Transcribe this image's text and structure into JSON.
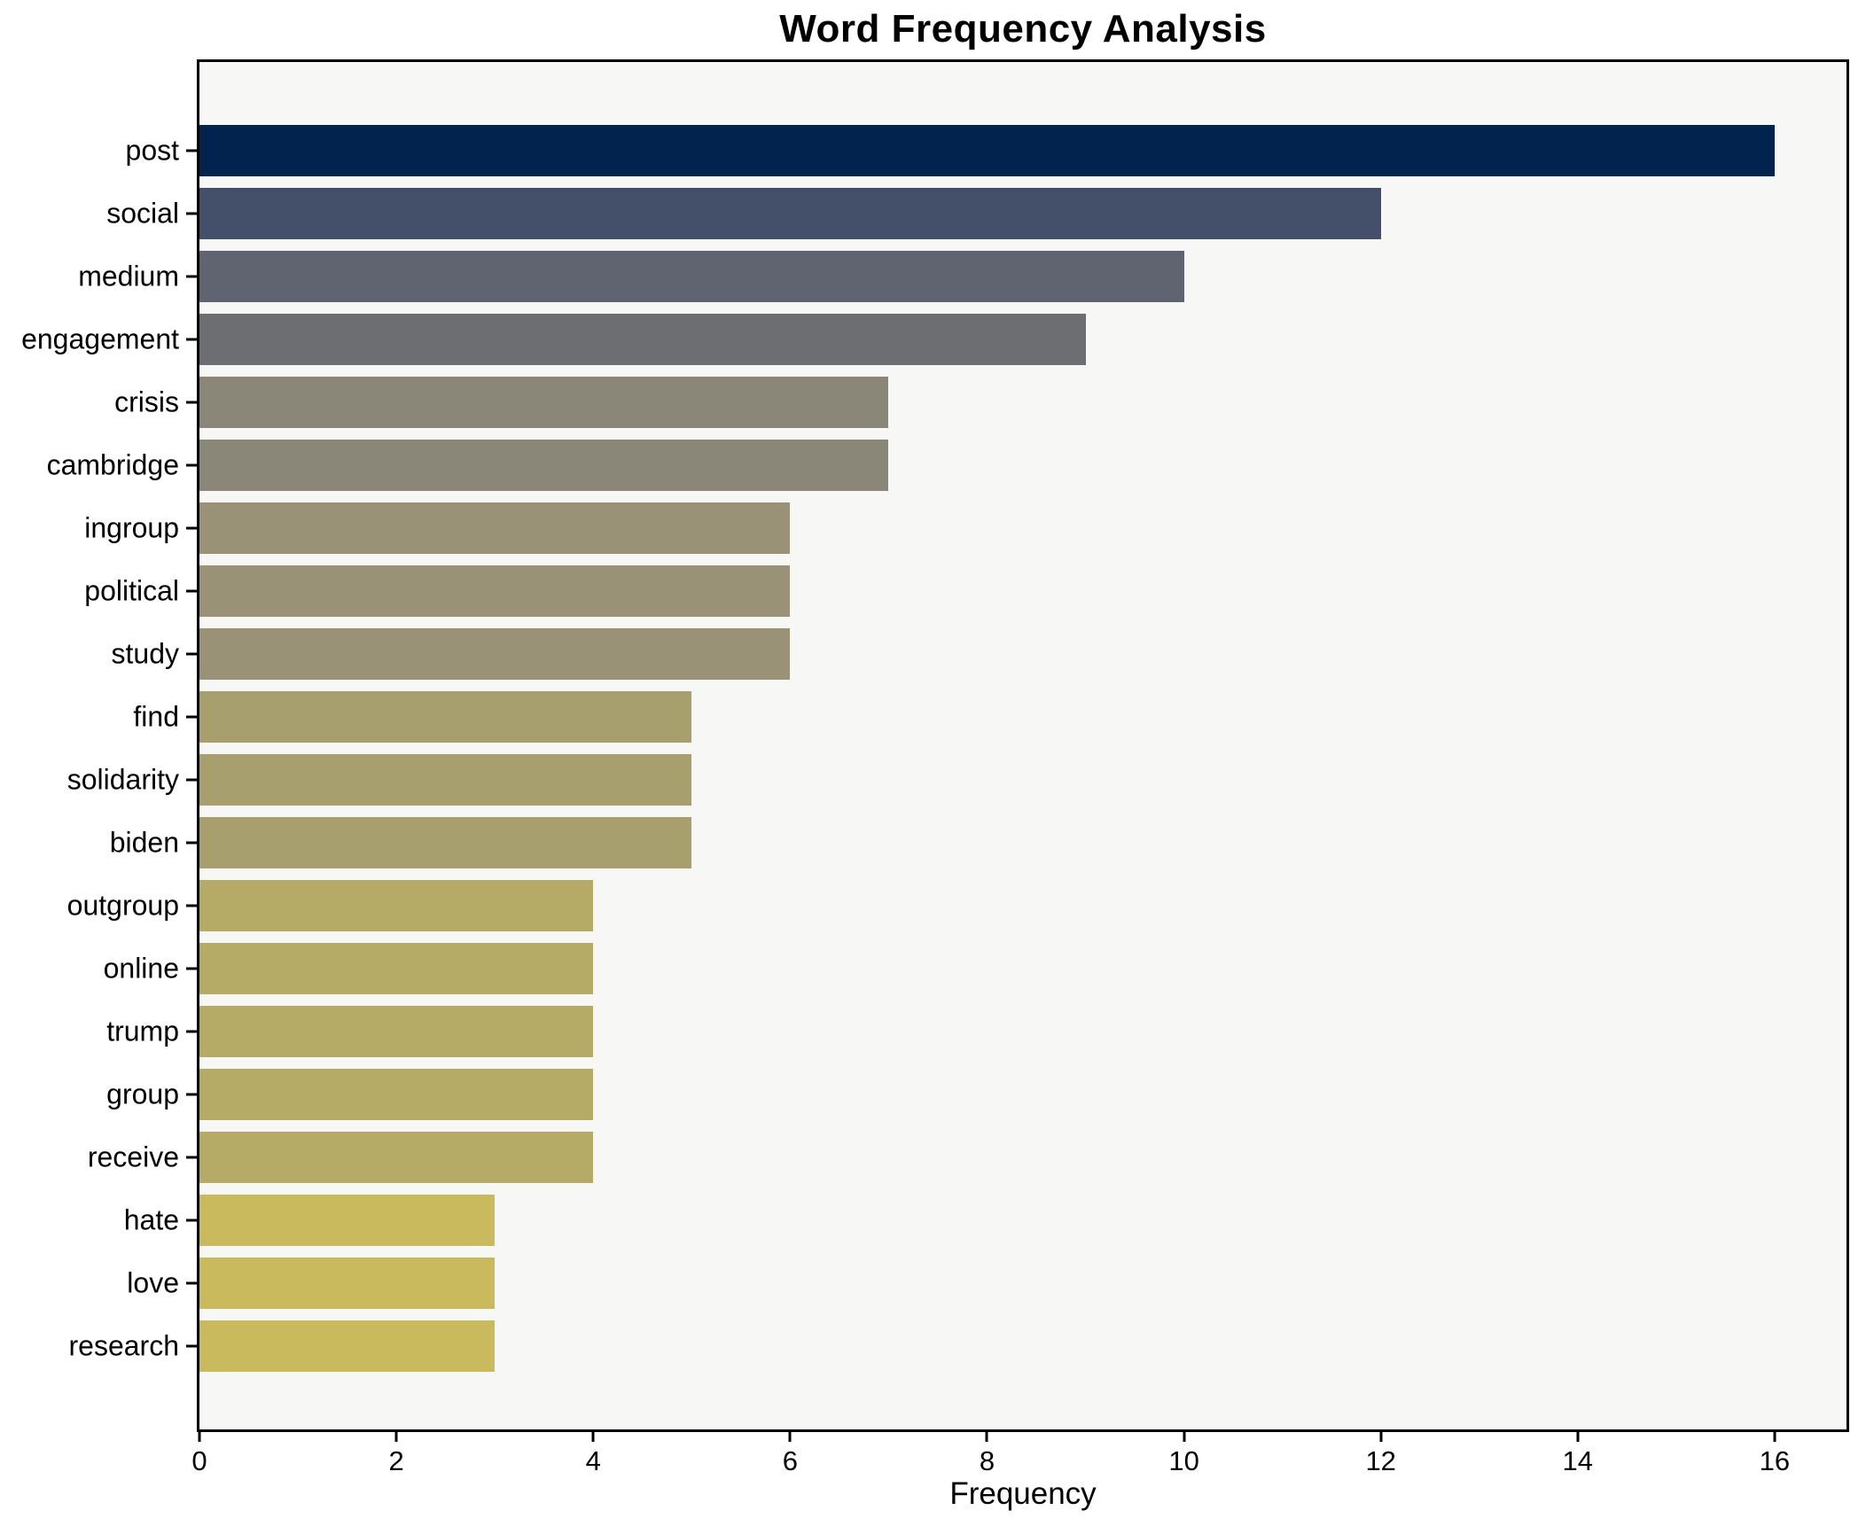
{
  "chart_data": {
    "type": "bar",
    "orientation": "horizontal",
    "title": "Word Frequency Analysis",
    "xlabel": "Frequency",
    "ylabel": "",
    "categories": [
      "post",
      "social",
      "medium",
      "engagement",
      "crisis",
      "cambridge",
      "ingroup",
      "political",
      "study",
      "find",
      "solidarity",
      "biden",
      "outgroup",
      "online",
      "trump",
      "group",
      "receive",
      "hate",
      "love",
      "research"
    ],
    "values": [
      16,
      12,
      10,
      9,
      7,
      7,
      6,
      6,
      6,
      5,
      5,
      5,
      4,
      4,
      4,
      4,
      4,
      3,
      3,
      3
    ],
    "bar_colors": [
      "#02234e",
      "#445069",
      "#5f6470",
      "#6d6e72",
      "#8a8779",
      "#8a8779",
      "#999276",
      "#999276",
      "#999276",
      "#a89f6e",
      "#a89f6e",
      "#a89f6e",
      "#b5ab67",
      "#b5ab67",
      "#b5ab67",
      "#b5ab67",
      "#b5ab67",
      "#c9ba5d",
      "#c9ba5d",
      "#c9ba5d"
    ],
    "x_ticks": [
      "0",
      "2",
      "4",
      "6",
      "8",
      "10",
      "12",
      "14",
      "16"
    ],
    "x_tick_values": [
      0,
      2,
      4,
      6,
      8,
      10,
      12,
      14,
      16
    ],
    "xlim": [
      0,
      16.73
    ],
    "grid": false,
    "legend": "none",
    "colors": {
      "plot_bg": "#f7f7f5",
      "figure_bg": "#ffffff",
      "spine": "#000000",
      "text": "#000000"
    }
  }
}
